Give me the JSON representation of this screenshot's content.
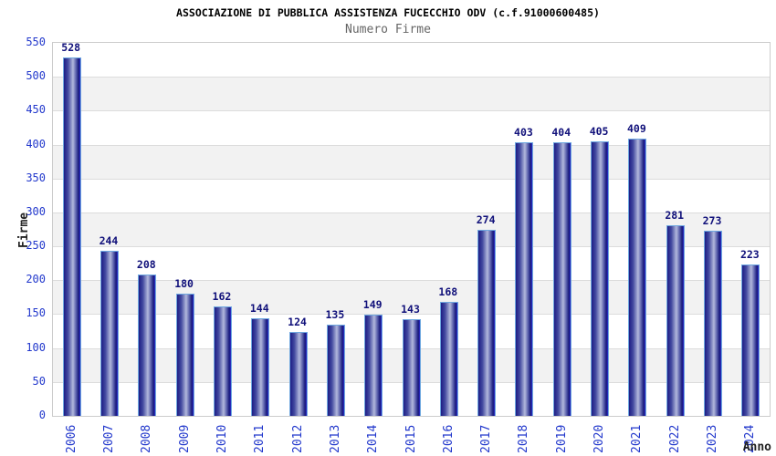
{
  "header": {
    "title": "ASSOCIAZIONE DI PUBBLICA ASSISTENZA FUCECCHIO ODV (c.f.91000600485)",
    "subtitle": "Numero Firme"
  },
  "chart_data": {
    "type": "bar",
    "title": "ASSOCIAZIONE DI PUBBLICA ASSISTENZA FUCECCHIO ODV (c.f.91000600485)",
    "subtitle": "Numero Firme",
    "categories": [
      "2006",
      "2007",
      "2008",
      "2009",
      "2010",
      "2011",
      "2012",
      "2013",
      "2014",
      "2015",
      "2016",
      "2017",
      "2018",
      "2019",
      "2020",
      "2021",
      "2022",
      "2023",
      "2024"
    ],
    "values": [
      528,
      244,
      208,
      180,
      162,
      144,
      124,
      135,
      149,
      143,
      168,
      274,
      403,
      404,
      405,
      409,
      281,
      273,
      223
    ],
    "xlabel": "Anno",
    "ylabel": "Firme",
    "ylim": [
      0,
      550
    ],
    "ytick_step": 50,
    "yticks": [
      0,
      50,
      100,
      150,
      200,
      250,
      300,
      350,
      400,
      450,
      500,
      550
    ],
    "grid": true,
    "legend": "none",
    "value_labels_shown": true,
    "colors": {
      "title_color": "#000000",
      "subtitle_color": "#666666",
      "tick_label": "#2238cc",
      "value_label": "#10107a",
      "axis_label_color": "#222222",
      "band_gray": "#f2f2f2",
      "gridline": "#dcdcdc",
      "plot_border": "#cccccc",
      "bar_dark": "#1d1d85",
      "bar_light": "#b2b8dc",
      "bar_edge": "#2d2dd0",
      "bar_outline": "#6fa8e0"
    }
  }
}
